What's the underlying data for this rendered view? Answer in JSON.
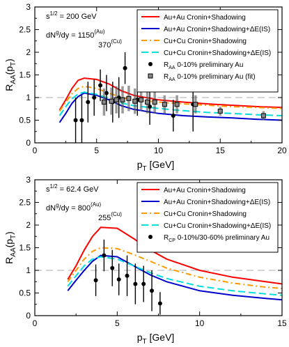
{
  "chart_data": [
    {
      "type": "line",
      "xlabel_base": "p",
      "xlabel_sub": "T",
      "xlabel_rest": " [GeV]",
      "ylabel_base": "R",
      "ylabel_sub": "AA",
      "ylabel_arg": "(p",
      "ylabel_arg_sub": "T",
      "ylabel_close": ")",
      "xlim": [
        0,
        20
      ],
      "ylim": [
        0,
        3
      ],
      "xticks": [
        0,
        5,
        10,
        15,
        20
      ],
      "yticks": [
        0,
        0.5,
        1,
        1.5,
        2,
        2.5,
        3
      ],
      "reference_line_y": 1,
      "annotations": {
        "energy": "s",
        "energy_sup": "1/2",
        "energy_val": " = 200 GeV",
        "dndy_prefix": "dN",
        "dndy_sup": "g",
        "dndy_mid": "/dy = 1150",
        "dndy_sup1": "(Au)",
        "dndy_val2": "370",
        "dndy_sup2": "(Cu)"
      },
      "series": [
        {
          "name": "Au+Au Cronin+Shadowing",
          "color": "#ff0000",
          "dash": "solid",
          "x": [
            2,
            2.5,
            3,
            3.5,
            4,
            5,
            6,
            7,
            8,
            10,
            12,
            14,
            16,
            18,
            20
          ],
          "y": [
            0.72,
            0.95,
            1.2,
            1.38,
            1.43,
            1.4,
            1.3,
            1.15,
            1.05,
            0.95,
            0.9,
            0.86,
            0.83,
            0.8,
            0.78
          ]
        },
        {
          "name": "Au+Au Cronin+Shadowing+ΔE(IS)",
          "color": "#0000cc",
          "dash": "solid",
          "x": [
            2,
            2.5,
            3,
            3.5,
            4,
            5,
            6,
            7,
            8,
            10,
            12,
            14,
            16,
            18,
            20
          ],
          "y": [
            0.45,
            0.65,
            0.87,
            1.02,
            1.1,
            1.05,
            0.95,
            0.82,
            0.74,
            0.65,
            0.6,
            0.57,
            0.55,
            0.52,
            0.5
          ]
        },
        {
          "name": "Cu+Cu Cronin+Shadowing",
          "color": "#ff9900",
          "dash": "8,4,2,4",
          "x": [
            2,
            2.5,
            3,
            3.5,
            4,
            5,
            6,
            7,
            8,
            10,
            12,
            14,
            16,
            18,
            20
          ],
          "y": [
            0.7,
            0.9,
            1.08,
            1.2,
            1.25,
            1.2,
            1.1,
            1.0,
            0.95,
            0.9,
            0.86,
            0.83,
            0.8,
            0.78,
            0.76
          ]
        },
        {
          "name": "Cu+Cu Cronin+Shadowing+ΔE(IS)",
          "color": "#00dddd",
          "dash": "10,5",
          "x": [
            2,
            2.5,
            3,
            3.5,
            4,
            5,
            6,
            7,
            8,
            10,
            12,
            14,
            16,
            18,
            20
          ],
          "y": [
            0.6,
            0.8,
            0.97,
            1.08,
            1.12,
            1.07,
            0.98,
            0.88,
            0.82,
            0.76,
            0.71,
            0.67,
            0.65,
            0.62,
            0.6
          ]
        }
      ],
      "points": [
        {
          "name": "R_AA 0-10% preliminary Au",
          "marker": "circle",
          "data": [
            [
              3.3,
              0.5,
              0.5
            ],
            [
              3.8,
              0.5,
              0.55
            ],
            [
              4.3,
              0.9,
              0.45
            ],
            [
              4.8,
              1.0,
              0.4
            ],
            [
              5.3,
              1.27,
              0.35
            ],
            [
              5.8,
              1.1,
              0.4
            ],
            [
              6.3,
              0.9,
              0.45
            ],
            [
              6.8,
              1.0,
              0.45
            ],
            [
              7.3,
              1.65,
              0.35
            ],
            [
              8.3,
              0.95,
              0.35
            ],
            [
              9.3,
              0.8,
              0.4
            ],
            [
              11.2,
              0.6,
              0.35
            ],
            [
              12.8,
              0.85,
              0.6
            ]
          ]
        },
        {
          "name": "R_AA 0-10% preliminary Au (fit)",
          "marker": "square",
          "data": [
            [
              5.6,
              0.9,
              0.3
            ],
            [
              6.2,
              0.92,
              0.3
            ],
            [
              6.6,
              0.95,
              0.3
            ],
            [
              7.1,
              0.95,
              0.3
            ],
            [
              7.6,
              0.98,
              0.28
            ],
            [
              8.1,
              0.92,
              0.28
            ],
            [
              8.6,
              0.95,
              0.25
            ],
            [
              9.1,
              0.9,
              0.25
            ],
            [
              9.7,
              0.9,
              0.25
            ],
            [
              10.5,
              0.85,
              0.2
            ],
            [
              11.5,
              0.85,
              0.2
            ],
            [
              13,
              0.85,
              0.2
            ],
            [
              15,
              0.7,
              0.1
            ],
            [
              18.5,
              0.6,
              0.1
            ]
          ]
        }
      ]
    },
    {
      "type": "line",
      "xlabel_base": "p",
      "xlabel_sub": "T",
      "xlabel_rest": " [GeV]",
      "ylabel_base": "R",
      "ylabel_sub": "AA",
      "ylabel_arg": "(p",
      "ylabel_arg_sub": "T",
      "ylabel_close": ")",
      "xlim": [
        0,
        15
      ],
      "ylim": [
        0,
        3
      ],
      "xticks": [
        0,
        5,
        10,
        15
      ],
      "yticks": [
        0,
        0.5,
        1,
        1.5,
        2,
        2.5,
        3
      ],
      "reference_line_y": 1,
      "annotations": {
        "energy": "s",
        "energy_sup": "1/2",
        "energy_val": " = 62.4 GeV",
        "dndy_prefix": "dN",
        "dndy_sup": "g",
        "dndy_mid": "/dy = 800",
        "dndy_sup1": "(Au)",
        "dndy_val2": "255",
        "dndy_sup2": "(Cu)"
      },
      "series": [
        {
          "name": "Au+Au Cronin+Shadowing",
          "color": "#ff0000",
          "dash": "solid",
          "x": [
            2,
            2.5,
            3,
            3.5,
            4,
            5,
            6,
            7,
            8,
            10,
            12,
            14,
            15
          ],
          "y": [
            0.8,
            1.1,
            1.45,
            1.75,
            1.95,
            1.93,
            1.7,
            1.45,
            1.25,
            1.0,
            0.85,
            0.75,
            0.7
          ]
        },
        {
          "name": "Au+Au Cronin+Shadowing+ΔE(IS)",
          "color": "#0000cc",
          "dash": "solid",
          "x": [
            2,
            2.5,
            3,
            3.5,
            4,
            5,
            6,
            7,
            8,
            10,
            12,
            14,
            15
          ],
          "y": [
            0.55,
            0.78,
            1.0,
            1.2,
            1.33,
            1.3,
            1.1,
            0.9,
            0.75,
            0.55,
            0.45,
            0.38,
            0.35
          ]
        },
        {
          "name": "Cu+Cu Cronin+Shadowing",
          "color": "#ff9900",
          "dash": "8,4,2,4",
          "x": [
            2,
            2.5,
            3,
            3.5,
            4,
            5,
            6,
            7,
            8,
            10,
            12,
            14,
            15
          ],
          "y": [
            0.75,
            1.0,
            1.25,
            1.42,
            1.5,
            1.48,
            1.35,
            1.2,
            1.05,
            0.85,
            0.72,
            0.63,
            0.6
          ]
        },
        {
          "name": "Cu+Cu Cronin+Shadowing+ΔE(IS)",
          "color": "#00dddd",
          "dash": "10,5",
          "x": [
            2,
            2.5,
            3,
            3.5,
            4,
            5,
            6,
            7,
            8,
            10,
            12,
            14,
            15
          ],
          "y": [
            0.65,
            0.88,
            1.1,
            1.25,
            1.3,
            1.25,
            1.1,
            0.95,
            0.82,
            0.65,
            0.55,
            0.48,
            0.45
          ]
        }
      ],
      "points": [
        {
          "name": "R_CP 0-10%/30-60% preliminary Au",
          "marker": "circle",
          "data": [
            [
              3.7,
              0.78,
              0.35
            ],
            [
              4.2,
              1.33,
              0.35
            ],
            [
              4.7,
              1.05,
              0.4
            ],
            [
              5.1,
              0.8,
              0.35
            ],
            [
              5.6,
              0.88,
              0.45
            ],
            [
              6.1,
              0.7,
              0.45
            ],
            [
              6.6,
              0.7,
              0.4
            ],
            [
              7.1,
              0.55,
              0.45
            ],
            [
              7.6,
              0.27,
              0.25
            ]
          ]
        }
      ]
    }
  ]
}
